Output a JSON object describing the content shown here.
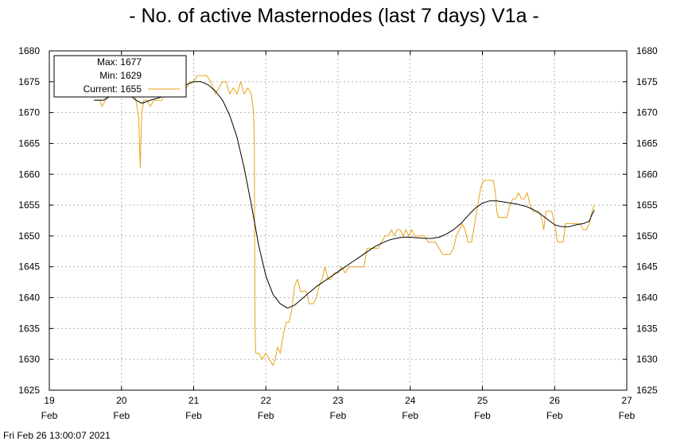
{
  "title": "- No. of active Masternodes (last 7 days) V1a -",
  "footer": "Fri Feb 26 13:00:07 2021",
  "legend": {
    "max": "Max: 1677",
    "min": "Min: 1629",
    "current": "Current: 1655"
  },
  "colors": {
    "raw_series": "#e8a317",
    "smoothed_series": "#000000",
    "grid": "#b4b4b4"
  },
  "chart_data": {
    "type": "line",
    "title": "- No. of active Masternodes (last 7 days) V1a -",
    "xlabel": "",
    "ylabel": "",
    "xlim": [
      19,
      27
    ],
    "ylim": [
      1625,
      1680
    ],
    "grid": true,
    "legend_position": "top-left",
    "x_ticks": [
      {
        "value": 19,
        "day": "19",
        "month": "Feb"
      },
      {
        "value": 20,
        "day": "20",
        "month": "Feb"
      },
      {
        "value": 21,
        "day": "21",
        "month": "Feb"
      },
      {
        "value": 22,
        "day": "22",
        "month": "Feb"
      },
      {
        "value": 23,
        "day": "23",
        "month": "Feb"
      },
      {
        "value": 24,
        "day": "24",
        "month": "Feb"
      },
      {
        "value": 25,
        "day": "25",
        "month": "Feb"
      },
      {
        "value": 26,
        "day": "26",
        "month": "Feb"
      },
      {
        "value": 27,
        "day": "27",
        "month": "Feb"
      }
    ],
    "y_ticks": [
      1625,
      1630,
      1635,
      1640,
      1645,
      1650,
      1655,
      1660,
      1665,
      1670,
      1675,
      1680
    ],
    "series": [
      {
        "values": [
          [
            19.62,
            1672
          ],
          [
            19.7,
            1672
          ],
          [
            19.73,
            1671
          ],
          [
            19.78,
            1672
          ],
          [
            19.82,
            1673
          ],
          [
            19.86,
            1673
          ],
          [
            19.9,
            1673
          ],
          [
            19.95,
            1674
          ],
          [
            20.0,
            1674
          ],
          [
            20.05,
            1674
          ],
          [
            20.1,
            1675
          ],
          [
            20.14,
            1675
          ],
          [
            20.17,
            1674
          ],
          [
            20.2,
            1672
          ],
          [
            20.24,
            1669
          ],
          [
            20.26,
            1661
          ],
          [
            20.28,
            1670
          ],
          [
            20.31,
            1672
          ],
          [
            20.35,
            1672
          ],
          [
            20.4,
            1671
          ],
          [
            20.45,
            1672
          ],
          [
            20.5,
            1672
          ],
          [
            20.56,
            1672
          ],
          [
            20.6,
            1673
          ],
          [
            20.65,
            1674
          ],
          [
            20.7,
            1676
          ],
          [
            20.74,
            1677
          ],
          [
            20.77,
            1675
          ],
          [
            20.8,
            1674
          ],
          [
            20.85,
            1674
          ],
          [
            20.9,
            1674
          ],
          [
            20.95,
            1675
          ],
          [
            21.0,
            1675
          ],
          [
            21.05,
            1676
          ],
          [
            21.1,
            1676
          ],
          [
            21.18,
            1676
          ],
          [
            21.24,
            1675
          ],
          [
            21.3,
            1673
          ],
          [
            21.35,
            1674
          ],
          [
            21.4,
            1675
          ],
          [
            21.45,
            1675
          ],
          [
            21.5,
            1673
          ],
          [
            21.55,
            1674
          ],
          [
            21.6,
            1673
          ],
          [
            21.65,
            1675
          ],
          [
            21.7,
            1673
          ],
          [
            21.75,
            1674
          ],
          [
            21.8,
            1673
          ],
          [
            21.83,
            1670
          ],
          [
            21.84,
            1665
          ],
          [
            21.85,
            1636
          ],
          [
            21.86,
            1631
          ],
          [
            21.9,
            1631
          ],
          [
            21.95,
            1630
          ],
          [
            22.0,
            1631
          ],
          [
            22.05,
            1630
          ],
          [
            22.1,
            1629
          ],
          [
            22.13,
            1630
          ],
          [
            22.16,
            1632
          ],
          [
            22.2,
            1631
          ],
          [
            22.24,
            1634
          ],
          [
            22.28,
            1636
          ],
          [
            22.32,
            1636
          ],
          [
            22.36,
            1638
          ],
          [
            22.4,
            1642
          ],
          [
            22.44,
            1643
          ],
          [
            22.48,
            1641
          ],
          [
            22.52,
            1641
          ],
          [
            22.56,
            1641
          ],
          [
            22.6,
            1639
          ],
          [
            22.66,
            1639
          ],
          [
            22.7,
            1640
          ],
          [
            22.74,
            1642
          ],
          [
            22.78,
            1643
          ],
          [
            22.82,
            1645
          ],
          [
            22.86,
            1643
          ],
          [
            22.9,
            1643
          ],
          [
            22.95,
            1644
          ],
          [
            23.0,
            1644
          ],
          [
            23.05,
            1645
          ],
          [
            23.1,
            1644
          ],
          [
            23.15,
            1645
          ],
          [
            23.2,
            1645
          ],
          [
            23.25,
            1645
          ],
          [
            23.3,
            1645
          ],
          [
            23.36,
            1645
          ],
          [
            23.4,
            1648
          ],
          [
            23.45,
            1648
          ],
          [
            23.5,
            1648
          ],
          [
            23.56,
            1648
          ],
          [
            23.6,
            1649
          ],
          [
            23.65,
            1650
          ],
          [
            23.7,
            1650
          ],
          [
            23.74,
            1651
          ],
          [
            23.78,
            1650
          ],
          [
            23.82,
            1651
          ],
          [
            23.86,
            1651
          ],
          [
            23.9,
            1650
          ],
          [
            23.94,
            1651
          ],
          [
            23.98,
            1650
          ],
          [
            24.02,
            1651
          ],
          [
            24.06,
            1650
          ],
          [
            24.1,
            1650
          ],
          [
            24.15,
            1650
          ],
          [
            24.2,
            1650
          ],
          [
            24.25,
            1649
          ],
          [
            24.3,
            1649
          ],
          [
            24.35,
            1649
          ],
          [
            24.4,
            1648
          ],
          [
            24.45,
            1647
          ],
          [
            24.5,
            1647
          ],
          [
            24.55,
            1647
          ],
          [
            24.6,
            1648
          ],
          [
            24.64,
            1650
          ],
          [
            24.68,
            1651
          ],
          [
            24.72,
            1652
          ],
          [
            24.76,
            1651
          ],
          [
            24.8,
            1649
          ],
          [
            24.85,
            1649
          ],
          [
            24.88,
            1651
          ],
          [
            24.92,
            1654
          ],
          [
            24.95,
            1656
          ],
          [
            24.98,
            1658
          ],
          [
            25.02,
            1659
          ],
          [
            25.06,
            1659
          ],
          [
            25.1,
            1659
          ],
          [
            25.15,
            1659
          ],
          [
            25.18,
            1657
          ],
          [
            25.2,
            1654
          ],
          [
            25.22,
            1653
          ],
          [
            25.26,
            1653
          ],
          [
            25.3,
            1653
          ],
          [
            25.34,
            1653
          ],
          [
            25.38,
            1655
          ],
          [
            25.42,
            1656
          ],
          [
            25.46,
            1656
          ],
          [
            25.5,
            1657
          ],
          [
            25.54,
            1656
          ],
          [
            25.58,
            1656
          ],
          [
            25.62,
            1657
          ],
          [
            25.66,
            1655
          ],
          [
            25.7,
            1654
          ],
          [
            25.74,
            1654
          ],
          [
            25.78,
            1654
          ],
          [
            25.82,
            1653
          ],
          [
            25.85,
            1651
          ],
          [
            25.88,
            1654
          ],
          [
            25.92,
            1654
          ],
          [
            25.96,
            1654
          ],
          [
            26.0,
            1652
          ],
          [
            26.04,
            1649
          ],
          [
            26.08,
            1649
          ],
          [
            26.12,
            1649
          ],
          [
            26.15,
            1652
          ],
          [
            26.2,
            1652
          ],
          [
            26.25,
            1652
          ],
          [
            26.3,
            1652
          ],
          [
            26.35,
            1652
          ],
          [
            26.4,
            1651
          ],
          [
            26.44,
            1651
          ],
          [
            26.48,
            1652
          ],
          [
            26.52,
            1654
          ],
          [
            26.55,
            1655
          ]
        ]
      },
      {
        "values": [
          [
            19.62,
            1672
          ],
          [
            19.75,
            1672
          ],
          [
            19.9,
            1673
          ],
          [
            20.0,
            1673.5
          ],
          [
            20.1,
            1673
          ],
          [
            20.2,
            1672
          ],
          [
            20.28,
            1671.5
          ],
          [
            20.4,
            1672
          ],
          [
            20.55,
            1672.5
          ],
          [
            20.7,
            1673.5
          ],
          [
            20.85,
            1674.3
          ],
          [
            21.0,
            1675
          ],
          [
            21.1,
            1675
          ],
          [
            21.2,
            1674.5
          ],
          [
            21.3,
            1673.5
          ],
          [
            21.4,
            1672
          ],
          [
            21.5,
            1669.5
          ],
          [
            21.6,
            1666
          ],
          [
            21.7,
            1661
          ],
          [
            21.8,
            1655
          ],
          [
            21.9,
            1648.5
          ],
          [
            22.0,
            1643.5
          ],
          [
            22.1,
            1640.5
          ],
          [
            22.2,
            1639
          ],
          [
            22.3,
            1638.3
          ],
          [
            22.4,
            1638.8
          ],
          [
            22.5,
            1639.8
          ],
          [
            22.6,
            1640.8
          ],
          [
            22.7,
            1641.8
          ],
          [
            22.8,
            1642.6
          ],
          [
            22.9,
            1643.4
          ],
          [
            23.0,
            1644.2
          ],
          [
            23.1,
            1645
          ],
          [
            23.2,
            1645.8
          ],
          [
            23.3,
            1646.6
          ],
          [
            23.4,
            1647.4
          ],
          [
            23.5,
            1648.2
          ],
          [
            23.6,
            1648.8
          ],
          [
            23.7,
            1649.3
          ],
          [
            23.8,
            1649.6
          ],
          [
            23.9,
            1649.8
          ],
          [
            24.0,
            1649.8
          ],
          [
            24.1,
            1649.7
          ],
          [
            24.2,
            1649.6
          ],
          [
            24.3,
            1649.6
          ],
          [
            24.4,
            1649.8
          ],
          [
            24.5,
            1650.3
          ],
          [
            24.6,
            1651
          ],
          [
            24.7,
            1652
          ],
          [
            24.8,
            1653.3
          ],
          [
            24.9,
            1654.5
          ],
          [
            25.0,
            1655.3
          ],
          [
            25.1,
            1655.7
          ],
          [
            25.2,
            1655.7
          ],
          [
            25.3,
            1655.5
          ],
          [
            25.4,
            1655.3
          ],
          [
            25.5,
            1655.1
          ],
          [
            25.6,
            1654.8
          ],
          [
            25.7,
            1654.3
          ],
          [
            25.8,
            1653.6
          ],
          [
            25.9,
            1652.7
          ],
          [
            26.0,
            1651.8
          ],
          [
            26.1,
            1651.5
          ],
          [
            26.2,
            1651.5
          ],
          [
            26.3,
            1651.8
          ],
          [
            26.4,
            1652
          ],
          [
            26.48,
            1652.4
          ],
          [
            26.52,
            1653.5
          ],
          [
            26.55,
            1654.2
          ]
        ]
      }
    ]
  }
}
